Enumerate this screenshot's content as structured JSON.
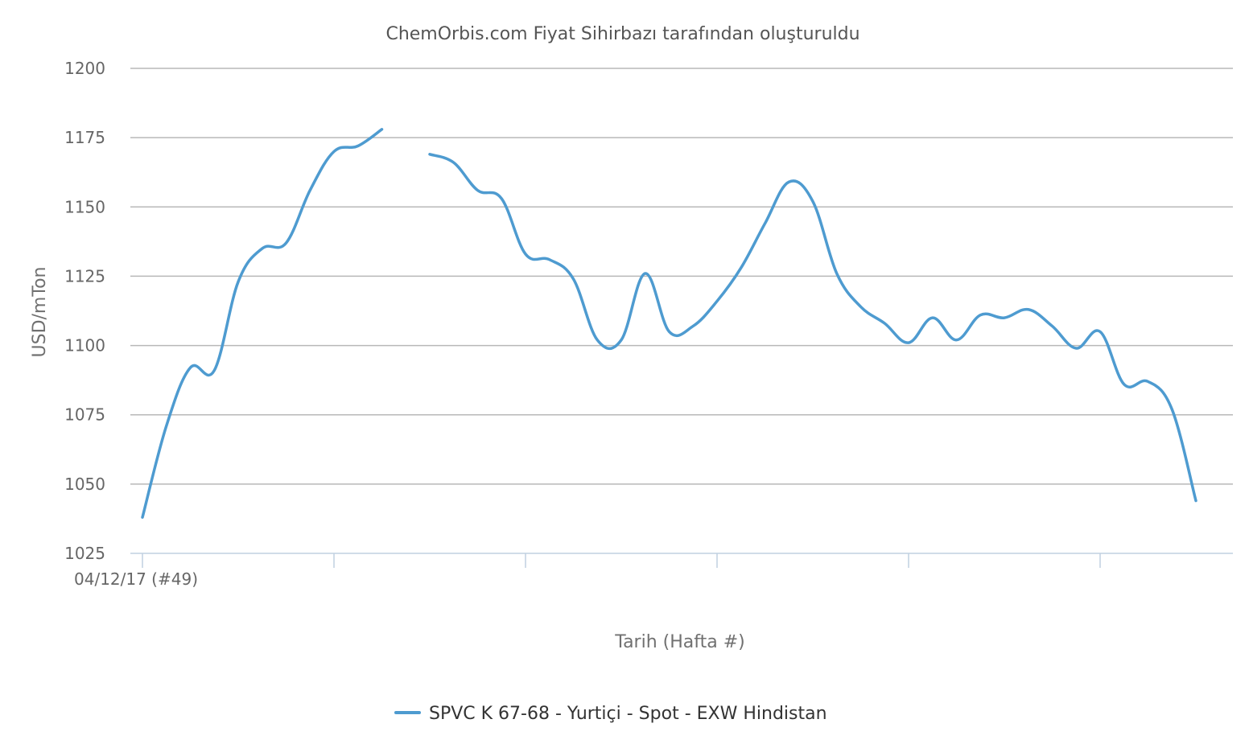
{
  "chart_data": {
    "type": "line",
    "title": "ChemOrbis.com Fiyat Sihirbazı tarafından oluşturuldu",
    "xlabel": "Tarih (Hafta #)",
    "ylabel": "USD/mTon",
    "ylim": [
      1025,
      1200
    ],
    "yticks": [
      1025,
      1050,
      1075,
      1100,
      1125,
      1150,
      1175,
      1200
    ],
    "x_tick_labels": [
      "04/12/17 (#49)",
      "",
      "",
      "",
      "",
      ""
    ],
    "grid": true,
    "legend_position": "bottom-center",
    "series": [
      {
        "name": "SPVC K 67-68 - Yurtiçi - Spot - EXW Hindistan",
        "color": "#4e9bd0",
        "segments": [
          [
            1038,
            1071,
            1092,
            1091,
            1123,
            1135,
            1137,
            1156,
            1170,
            1172,
            1178
          ],
          [
            1169,
            1166,
            1156,
            1153,
            1133,
            1131,
            1124,
            1102,
            1102,
            1126,
            1105,
            1107,
            1116,
            1128,
            1144,
            1159,
            1152,
            1126,
            1114,
            1108,
            1101,
            1110,
            1102,
            1111,
            1110,
            1113,
            1107,
            1099,
            1105,
            1086,
            1087,
            1077,
            1044
          ]
        ]
      }
    ]
  }
}
